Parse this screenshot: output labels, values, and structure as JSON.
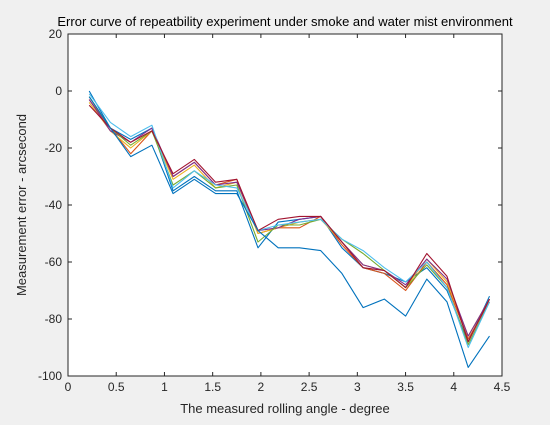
{
  "chart_data": {
    "type": "line",
    "title": "Error curve of repeatbility experiment under smoke and water mist environment",
    "xlabel": "The measured rolling angle - degree",
    "ylabel": "Measurement error - arcsecond",
    "xlim": [
      0,
      4.5
    ],
    "ylim": [
      -100,
      20
    ],
    "x_ticks": [
      "0",
      "0.5",
      "1",
      "1.5",
      "2",
      "2.5",
      "3",
      "3.5",
      "4",
      "4.5"
    ],
    "y_ticks": [
      "20",
      "0",
      "-20",
      "-40",
      "-60",
      "-80",
      "-100"
    ],
    "grid": false,
    "legend": "none",
    "x": [
      0.22,
      0.44,
      0.65,
      0.87,
      1.09,
      1.31,
      1.53,
      1.75,
      1.97,
      2.18,
      2.4,
      2.62,
      2.84,
      3.06,
      3.28,
      3.5,
      3.72,
      3.93,
      4.15,
      4.37
    ],
    "series": [
      {
        "color": "#0072BD",
        "values": [
          0,
          -13,
          -17,
          -13,
          -35,
          -30,
          -35,
          -35,
          -55,
          -46,
          -45,
          -44,
          -55,
          -62,
          -64,
          -67,
          -62,
          -70,
          -88,
          -72
        ]
      },
      {
        "color": "#D95319",
        "values": [
          -3,
          -13,
          -22,
          -14,
          -30,
          -25,
          -33,
          -31,
          -50,
          -48,
          -48,
          -44,
          -54,
          -62,
          -64,
          -70,
          -60,
          -68,
          -87,
          -74
        ]
      },
      {
        "color": "#EDB120",
        "values": [
          -4,
          -14,
          -20,
          -14,
          -31,
          -26,
          -34,
          -32,
          -50,
          -48,
          -46,
          -45,
          -53,
          -61,
          -63,
          -69,
          -59,
          -67,
          -86,
          -73
        ]
      },
      {
        "color": "#7E2F8E",
        "values": [
          -3,
          -14,
          -18,
          -13,
          -30,
          -25,
          -33,
          -32,
          -49,
          -48,
          -45,
          -44,
          -53,
          -61,
          -63,
          -68,
          -59,
          -66,
          -86,
          -73
        ]
      },
      {
        "color": "#77AC30",
        "values": [
          -2,
          -13,
          -19,
          -14,
          -33,
          -28,
          -34,
          -33,
          -53,
          -47,
          -47,
          -45,
          -52,
          -57,
          -63,
          -69,
          -61,
          -69,
          -89,
          -74
        ]
      },
      {
        "color": "#4DBEEE",
        "values": [
          -1,
          -11,
          -16,
          -12,
          -34,
          -28,
          -33,
          -34,
          -49,
          -47,
          -46,
          -45,
          -52,
          -56,
          -62,
          -67,
          -60,
          -69,
          -90,
          -74
        ]
      },
      {
        "color": "#A2142F",
        "values": [
          -5,
          -13,
          -18,
          -14,
          -29,
          -24,
          -32,
          -31,
          -49,
          -45,
          -44,
          -44,
          -53,
          -62,
          -63,
          -69,
          -57,
          -65,
          -88,
          -73
        ]
      },
      {
        "color": "#0072BD",
        "values": [
          -2,
          -13,
          -23,
          -19,
          -36,
          -31,
          -36,
          -36,
          -49,
          -55,
          -55,
          -56,
          -64,
          -76,
          -73,
          -79,
          -66,
          -74,
          -97,
          -86
        ]
      }
    ]
  }
}
